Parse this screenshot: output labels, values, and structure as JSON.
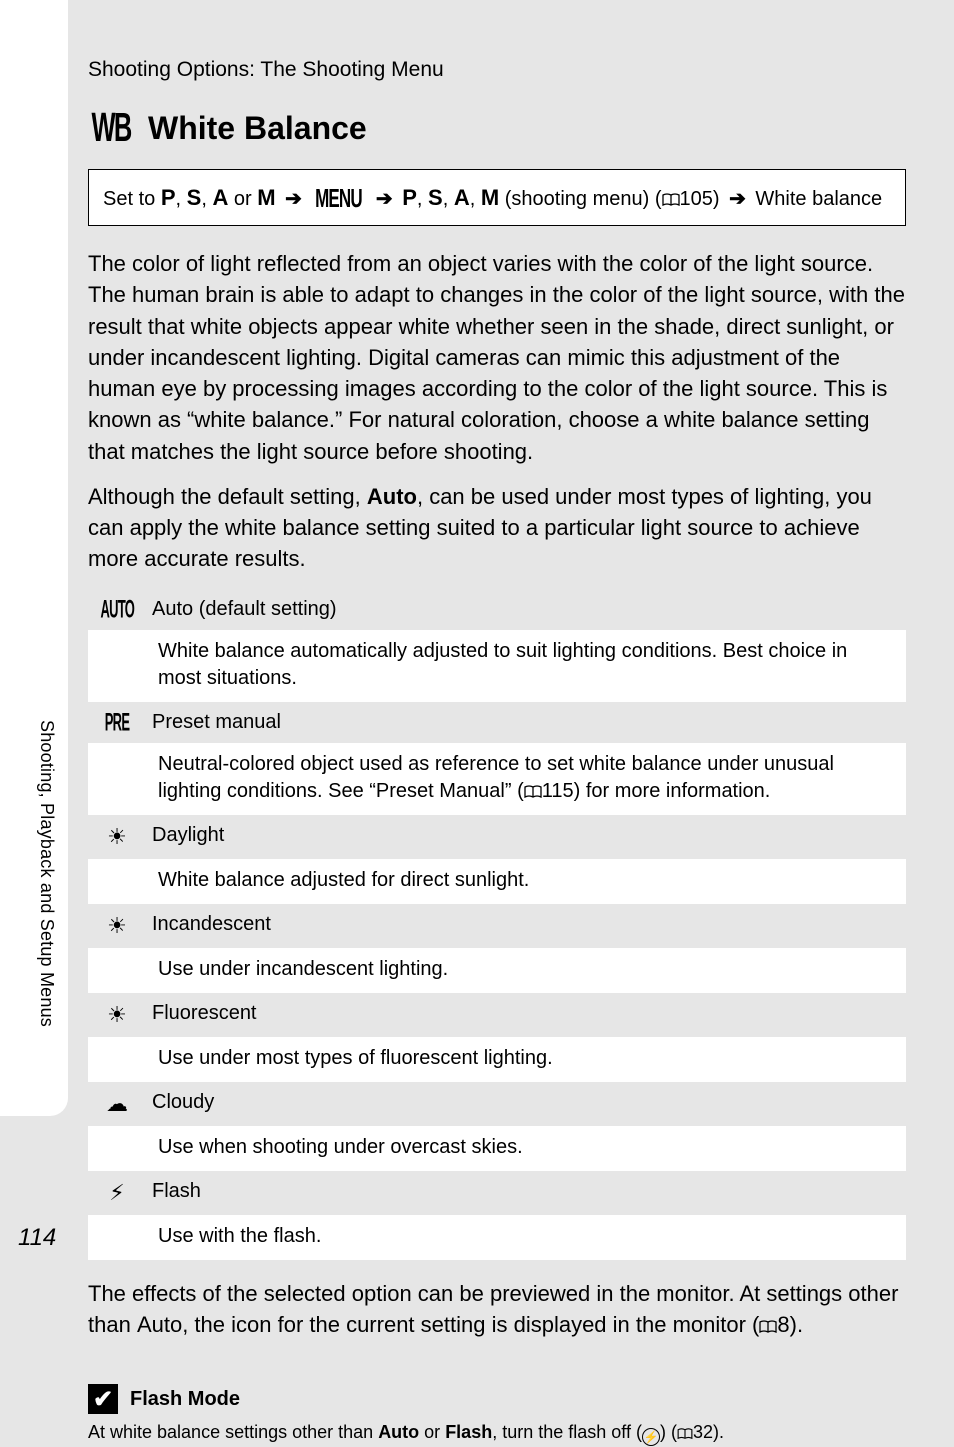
{
  "page_number": "114",
  "side_label": "Shooting, Playback and Setup Menus",
  "breadcrumb": "Shooting Options: The Shooting Menu",
  "heading_icon": "WB",
  "heading": "White Balance",
  "nav": {
    "prefix": "Set to ",
    "modes1": [
      "P",
      "S",
      "A",
      "M"
    ],
    "sep_or": " or ",
    "menu_label": "MENU",
    "modes2": [
      "P",
      "S",
      "A",
      "M"
    ],
    "menu_suffix": " (shooting menu) (",
    "page_ref1": "105)",
    "end": " White balance"
  },
  "paragraph1": "The color of light reflected from an object varies with the color of the light source. The human brain is able to adapt to changes in the color of the light source, with the result that white objects appear white whether seen in the shade, direct sunlight, or under incandescent lighting. Digital cameras can mimic this adjustment of the human eye by processing images according to the color of the light source. This is known as “white balance.” For natural coloration, choose a white balance setting that matches the light source before shooting.",
  "paragraph2_pre": "Although the default setting, ",
  "paragraph2_bold": "Auto",
  "paragraph2_post": ", can be used under most types of lighting, you can apply the white balance setting suited to a particular light source to achieve more accurate results.",
  "options": [
    {
      "icon": "AUTO",
      "icon_kind": "text",
      "label": "Auto (default setting)",
      "desc_pre": "White balance automatically adjusted to suit lighting conditions. Best choice in most situations.",
      "desc_ref": ""
    },
    {
      "icon": "PRE",
      "icon_kind": "text",
      "label": "Preset manual",
      "desc_pre": "Neutral-colored object used as reference to set white balance under unusual lighting conditions. See “Preset Manual” (",
      "desc_ref": "115) for more information."
    },
    {
      "icon": "☀︎",
      "icon_kind": "glyph",
      "label": "Daylight",
      "desc_pre": "White balance adjusted for direct sunlight.",
      "desc_ref": ""
    },
    {
      "icon": "☀︎",
      "icon_kind": "glyph",
      "label": "Incandescent",
      "desc_pre": "Use under incandescent lighting.",
      "desc_ref": ""
    },
    {
      "icon": "☀︎",
      "icon_kind": "glyph",
      "label": "Fluorescent",
      "desc_pre": "Use under most types of fluorescent lighting.",
      "desc_ref": ""
    },
    {
      "icon": "☁︎",
      "icon_kind": "glyph",
      "label": "Cloudy",
      "desc_pre": "Use when shooting under overcast skies.",
      "desc_ref": ""
    },
    {
      "icon": "⚡︎",
      "icon_kind": "glyph",
      "label": "Flash",
      "desc_pre": "Use with the flash.",
      "desc_ref": ""
    }
  ],
  "closing_pre": "The effects of the selected option can be previewed in the monitor. At settings other than ",
  "closing_bold": "Auto",
  "closing_post": ", the icon for the current setting is displayed in the monitor (",
  "closing_ref": "8).",
  "note": {
    "title": "Flash Mode",
    "pre": "At white balance settings other than ",
    "b1": "Auto",
    "mid": " or ",
    "b2": "Flash",
    "post": ", turn the flash off (",
    "circ": "⚡",
    "after_circ": ") (",
    "ref": "32)."
  }
}
